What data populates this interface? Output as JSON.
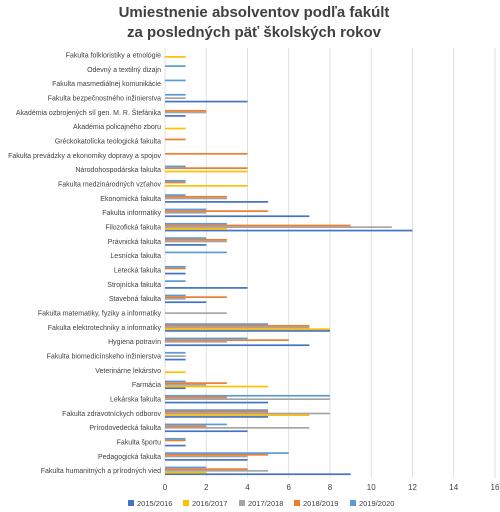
{
  "chart_data": {
    "type": "bar",
    "orientation": "horizontal",
    "title": [
      "Umiestnenie absolventov podľa fakúlt",
      "za posledných päť školských rokov"
    ],
    "xlabel": "",
    "ylabel": "",
    "xlim": [
      0,
      16
    ],
    "xticks": [
      0,
      2,
      4,
      6,
      8,
      10,
      12,
      14,
      16
    ],
    "grid": true,
    "legend_position": "bottom",
    "colors": [
      "#4472c4",
      "#ffc000",
      "#a5a5a5",
      "#ed7d31",
      "#5b9bd5"
    ],
    "categories": [
      "Fakulta folkloristiky a etnológie",
      "Odevný a textilný dizajn",
      "Fakulta masmediálnej komunikácie",
      "Fakulta bezpečnostného inžinierstva",
      "Akadémia ozbrojených síl gen. M. R. Štefánika",
      "Akadémia policajného zboru",
      "Gréckokatolícka teologická fakulta",
      "Fakulta prevádzky a ekonomiky dopravy a spojov",
      "Národohospodárska fakulta",
      "Fakulta medzinárodných vzťahov",
      "Ekonomická fakulta",
      "Fakulta informatiky",
      "Filozofická fakulta",
      "Právnická fakulta",
      "Lesnícka fakulta",
      "Letecká fakulta",
      "Strojnícka fakulta",
      "Stavebná fakulta",
      "Fakulta matematiky, fyziky a informatiky",
      "Fakulta elektrotechniky a informatiky",
      "Hygiena potravín",
      "Fakulta biomedicínskeho inžinierstva",
      "Veterinárne lekárstvo",
      "Farmácia",
      "Lekárska fakulta",
      "Fakulta zdravotníckych odborov",
      "Prírodovedecká fakulta",
      "Fakulta športu",
      "Pedagogická fakulta",
      "Fakulta humanitných a prírodných vied"
    ],
    "series": [
      {
        "name": "2015/2016",
        "values": [
          0,
          0,
          0,
          4,
          1,
          0,
          0,
          0,
          0,
          0,
          5,
          7,
          12,
          2,
          0,
          1,
          4,
          2,
          0,
          8,
          7,
          1,
          0,
          1,
          5,
          5,
          4,
          1,
          4,
          9
        ]
      },
      {
        "name": "2016/2017",
        "values": [
          1,
          0,
          0,
          0,
          0,
          1,
          0,
          0,
          4,
          4,
          0,
          0,
          3,
          0,
          0,
          0,
          0,
          0,
          0,
          8,
          0,
          0,
          1,
          5,
          0,
          7,
          0,
          0,
          0,
          2
        ]
      },
      {
        "name": "2017/2018",
        "values": [
          0,
          0,
          0,
          1,
          2,
          0,
          0,
          0,
          0,
          0,
          3,
          2,
          11,
          3,
          0,
          0,
          0,
          1,
          3,
          7,
          3,
          1,
          0,
          2,
          8,
          8,
          7,
          0,
          4,
          5
        ]
      },
      {
        "name": "2018/2019",
        "values": [
          0,
          0,
          0,
          0,
          2,
          0,
          1,
          4,
          4,
          1,
          3,
          5,
          9,
          3,
          0,
          1,
          0,
          3,
          0,
          7,
          6,
          0,
          0,
          3,
          3,
          5,
          2,
          1,
          5,
          4
        ]
      },
      {
        "name": "2019/2020",
        "values": [
          0,
          1,
          1,
          1,
          0,
          0,
          0,
          0,
          1,
          1,
          1,
          2,
          3,
          2,
          3,
          1,
          1,
          1,
          0,
          5,
          4,
          1,
          0,
          1,
          8,
          5,
          3,
          1,
          6,
          2
        ]
      }
    ]
  }
}
